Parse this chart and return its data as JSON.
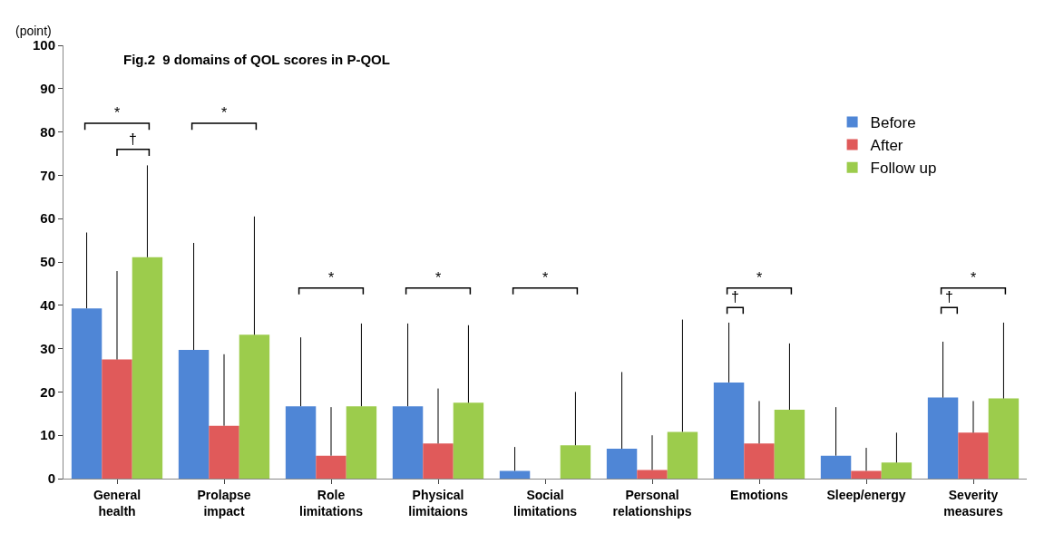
{
  "chart_data": {
    "type": "bar",
    "title": "Fig.2  9 domains of QOL scores in P-QOL",
    "ylabel": "(point)",
    "categories": [
      "General health",
      "Prolapse impact",
      "Role limitations",
      "Physical limitaions",
      "Social limitations",
      "Personal relationships",
      "Emotions",
      "Sleep/energy",
      "Severity measures"
    ],
    "series": [
      {
        "name": "Before",
        "color": "#4f86d6",
        "values": [
          39.3,
          29.7,
          16.7,
          16.7,
          1.8,
          6.9,
          22.2,
          5.3,
          18.7
        ],
        "errors": [
          [
            39.3,
            56.8
          ],
          [
            29.7,
            54.4
          ],
          [
            16.7,
            32.6
          ],
          [
            16.7,
            35.8
          ],
          [
            1.8,
            7.3
          ],
          [
            6.9,
            24.6
          ],
          [
            22.2,
            36.0
          ],
          [
            5.3,
            16.5
          ],
          [
            18.7,
            31.6
          ]
        ]
      },
      {
        "name": "After",
        "color": "#e05a5a",
        "values": [
          27.5,
          12.2,
          5.3,
          8.1,
          0,
          2.0,
          8.1,
          1.8,
          10.6
        ],
        "errors": [
          [
            27.5,
            47.9
          ],
          [
            12.2,
            28.7
          ],
          [
            5.3,
            16.5
          ],
          [
            8.1,
            20.8
          ],
          null,
          [
            2.0,
            10.0
          ],
          [
            8.1,
            17.9
          ],
          [
            1.8,
            7.1
          ],
          [
            10.6,
            17.9
          ]
        ]
      },
      {
        "name": "Follow up",
        "color": "#9ccc4c",
        "values": [
          51.1,
          33.2,
          16.7,
          17.5,
          7.7,
          10.8,
          15.9,
          3.7,
          18.5
        ],
        "errors": [
          [
            51.1,
            72.3
          ],
          [
            33.2,
            60.5
          ],
          [
            16.7,
            35.8
          ],
          [
            17.5,
            35.4
          ],
          [
            7.7,
            20.0
          ],
          [
            10.8,
            36.7
          ],
          [
            15.9,
            31.2
          ],
          [
            3.7,
            10.6
          ],
          [
            18.5,
            36.0
          ]
        ]
      }
    ],
    "annotations": [
      "*",
      "†",
      "*",
      "*",
      "*",
      "*",
      "*",
      "†",
      "*",
      "†"
    ],
    "ylim": [
      0,
      100
    ],
    "yticks": [
      0,
      10,
      20,
      30,
      40,
      50,
      60,
      70,
      80,
      90,
      100
    ],
    "legend": "top right"
  }
}
